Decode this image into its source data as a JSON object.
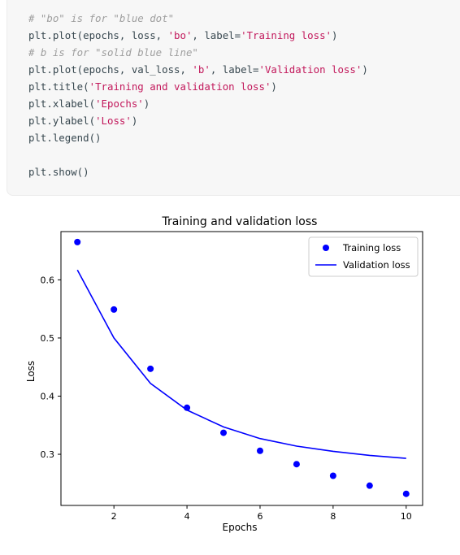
{
  "code": {
    "lines": [
      [
        {
          "t": "# \"bo\" is for \"blue dot\"",
          "k": "comment"
        }
      ],
      [
        {
          "t": "plt.plot(epochs, loss, ",
          "k": "plain"
        },
        {
          "t": "'bo'",
          "k": "string"
        },
        {
          "t": ", label=",
          "k": "plain"
        },
        {
          "t": "'Training loss'",
          "k": "string"
        },
        {
          "t": ")",
          "k": "plain"
        }
      ],
      [
        {
          "t": "# b is for \"solid blue line\"",
          "k": "comment"
        }
      ],
      [
        {
          "t": "plt.plot(epochs, val_loss, ",
          "k": "plain"
        },
        {
          "t": "'b'",
          "k": "string"
        },
        {
          "t": ", label=",
          "k": "plain"
        },
        {
          "t": "'Validation loss'",
          "k": "string"
        },
        {
          "t": ")",
          "k": "plain"
        }
      ],
      [
        {
          "t": "plt.title(",
          "k": "plain"
        },
        {
          "t": "'Training and validation loss'",
          "k": "string"
        },
        {
          "t": ")",
          "k": "plain"
        }
      ],
      [
        {
          "t": "plt.xlabel(",
          "k": "plain"
        },
        {
          "t": "'Epochs'",
          "k": "string"
        },
        {
          "t": ")",
          "k": "plain"
        }
      ],
      [
        {
          "t": "plt.ylabel(",
          "k": "plain"
        },
        {
          "t": "'Loss'",
          "k": "string"
        },
        {
          "t": ")",
          "k": "plain"
        }
      ],
      [
        {
          "t": "plt.legend()",
          "k": "plain"
        }
      ],
      [
        {
          "t": "",
          "k": "plain"
        }
      ],
      [
        {
          "t": "plt.show()",
          "k": "plain"
        }
      ]
    ]
  },
  "chart_data": {
    "type": "line",
    "title": "Training and validation loss",
    "xlabel": "Epochs",
    "ylabel": "Loss",
    "xlim": [
      0.55,
      10.45
    ],
    "ylim": [
      0.212,
      0.683
    ],
    "xticks": [
      2,
      4,
      6,
      8,
      10
    ],
    "yticks": [
      0.3,
      0.4,
      0.5,
      0.6
    ],
    "ytick_labels": [
      "0.3",
      "0.4",
      "0.5",
      "0.6"
    ],
    "legend_position": "top-right",
    "grid": false,
    "color": "#0000ff",
    "series": [
      {
        "name": "Training loss",
        "style": "points",
        "x": [
          1,
          2,
          3,
          4,
          5,
          6,
          7,
          8,
          9,
          10
        ],
        "y": [
          0.665,
          0.549,
          0.447,
          0.38,
          0.337,
          0.306,
          0.283,
          0.263,
          0.246,
          0.232
        ]
      },
      {
        "name": "Validation loss",
        "style": "line",
        "x": [
          1,
          2,
          3,
          4,
          5,
          6,
          7,
          8,
          9,
          10
        ],
        "y": [
          0.617,
          0.5,
          0.422,
          0.376,
          0.347,
          0.327,
          0.314,
          0.305,
          0.298,
          0.293
        ]
      }
    ]
  }
}
